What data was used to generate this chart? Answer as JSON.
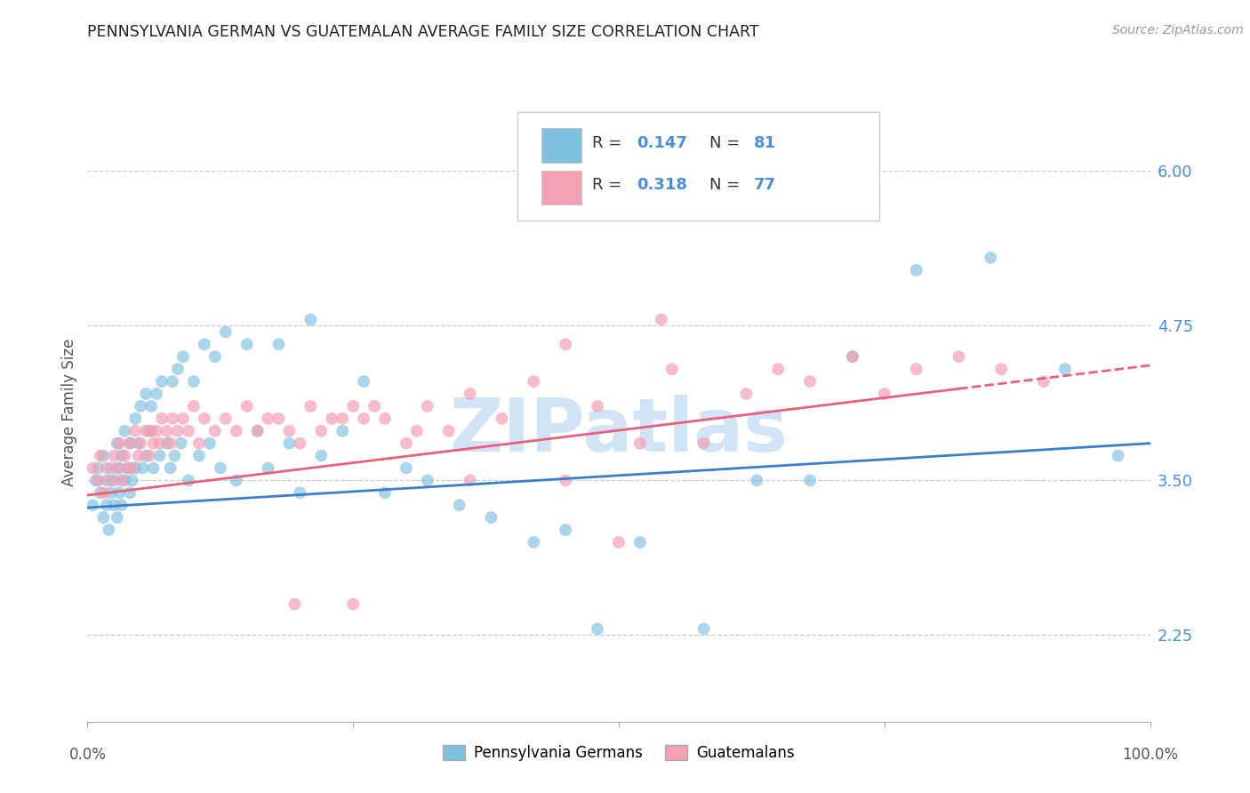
{
  "title": "PENNSYLVANIA GERMAN VS GUATEMALAN AVERAGE FAMILY SIZE CORRELATION CHART",
  "source": "Source: ZipAtlas.com",
  "ylabel": "Average Family Size",
  "r_blue": "0.147",
  "n_blue": "81",
  "r_pink": "0.318",
  "n_pink": "77",
  "legend_blue": "Pennsylvania Germans",
  "legend_pink": "Guatemalans",
  "yticks": [
    2.25,
    3.5,
    4.75,
    6.0
  ],
  "ylim": [
    1.55,
    6.55
  ],
  "xlim": [
    0.0,
    1.0
  ],
  "blue_color": "#7fbfdf",
  "pink_color": "#f4a0b5",
  "line_blue": "#3a80c8",
  "line_pink": "#e8607a",
  "watermark": "ZIPatlas",
  "watermark_color": "#d0e4f5",
  "bg_color": "#ffffff",
  "grid_color": "#cccccc",
  "title_color": "#222222",
  "axis_color": "#555555",
  "right_tick_color": "#4a90d9",
  "blue_line_intercept": 3.28,
  "blue_line_slope": 0.52,
  "pink_line_intercept": 3.38,
  "pink_line_slope": 1.05,
  "blue_points_x": [
    0.005,
    0.008,
    0.01,
    0.012,
    0.015,
    0.015,
    0.018,
    0.018,
    0.02,
    0.022,
    0.022,
    0.025,
    0.025,
    0.028,
    0.028,
    0.03,
    0.03,
    0.032,
    0.032,
    0.035,
    0.035,
    0.038,
    0.04,
    0.04,
    0.042,
    0.045,
    0.045,
    0.048,
    0.05,
    0.052,
    0.055,
    0.055,
    0.058,
    0.06,
    0.062,
    0.065,
    0.068,
    0.07,
    0.075,
    0.078,
    0.08,
    0.082,
    0.085,
    0.088,
    0.09,
    0.095,
    0.1,
    0.105,
    0.11,
    0.115,
    0.12,
    0.125,
    0.13,
    0.14,
    0.15,
    0.16,
    0.17,
    0.18,
    0.19,
    0.2,
    0.21,
    0.22,
    0.24,
    0.26,
    0.28,
    0.3,
    0.32,
    0.35,
    0.38,
    0.42,
    0.45,
    0.48,
    0.52,
    0.58,
    0.63,
    0.68,
    0.72,
    0.78,
    0.85,
    0.92,
    0.97
  ],
  "blue_points_y": [
    3.3,
    3.5,
    3.6,
    3.4,
    3.2,
    3.7,
    3.3,
    3.5,
    3.1,
    3.4,
    3.6,
    3.3,
    3.5,
    3.2,
    3.8,
    3.4,
    3.6,
    3.3,
    3.7,
    3.5,
    3.9,
    3.6,
    3.4,
    3.8,
    3.5,
    4.0,
    3.6,
    3.8,
    4.1,
    3.6,
    4.2,
    3.7,
    3.9,
    4.1,
    3.6,
    4.2,
    3.7,
    4.3,
    3.8,
    3.6,
    4.3,
    3.7,
    4.4,
    3.8,
    4.5,
    3.5,
    4.3,
    3.7,
    4.6,
    3.8,
    4.5,
    3.6,
    4.7,
    3.5,
    4.6,
    3.9,
    3.6,
    4.6,
    3.8,
    3.4,
    4.8,
    3.7,
    3.9,
    4.3,
    3.4,
    3.6,
    3.5,
    3.3,
    3.2,
    3.0,
    3.1,
    2.3,
    3.0,
    2.3,
    3.5,
    3.5,
    4.5,
    5.2,
    5.3,
    4.4,
    3.7
  ],
  "pink_points_x": [
    0.005,
    0.01,
    0.012,
    0.015,
    0.018,
    0.022,
    0.025,
    0.028,
    0.03,
    0.032,
    0.035,
    0.038,
    0.04,
    0.042,
    0.045,
    0.048,
    0.05,
    0.055,
    0.058,
    0.06,
    0.062,
    0.065,
    0.068,
    0.07,
    0.075,
    0.078,
    0.08,
    0.085,
    0.09,
    0.095,
    0.1,
    0.105,
    0.11,
    0.12,
    0.13,
    0.14,
    0.15,
    0.16,
    0.17,
    0.18,
    0.19,
    0.2,
    0.21,
    0.22,
    0.23,
    0.24,
    0.25,
    0.26,
    0.27,
    0.28,
    0.3,
    0.32,
    0.34,
    0.36,
    0.39,
    0.42,
    0.45,
    0.48,
    0.52,
    0.55,
    0.58,
    0.62,
    0.65,
    0.68,
    0.72,
    0.75,
    0.78,
    0.82,
    0.86,
    0.9,
    0.195,
    0.25,
    0.31,
    0.36,
    0.45,
    0.5,
    0.54
  ],
  "pink_points_y": [
    3.6,
    3.5,
    3.7,
    3.4,
    3.6,
    3.5,
    3.7,
    3.6,
    3.8,
    3.5,
    3.7,
    3.6,
    3.8,
    3.6,
    3.9,
    3.7,
    3.8,
    3.9,
    3.7,
    3.9,
    3.8,
    3.9,
    3.8,
    4.0,
    3.9,
    3.8,
    4.0,
    3.9,
    4.0,
    3.9,
    4.1,
    3.8,
    4.0,
    3.9,
    4.0,
    3.9,
    4.1,
    3.9,
    4.0,
    4.0,
    3.9,
    3.8,
    4.1,
    3.9,
    4.0,
    4.0,
    4.1,
    4.0,
    4.1,
    4.0,
    3.8,
    4.1,
    3.9,
    4.2,
    4.0,
    4.3,
    3.5,
    4.1,
    3.8,
    4.4,
    3.8,
    4.2,
    4.4,
    4.3,
    4.5,
    4.2,
    4.4,
    4.5,
    4.4,
    4.3,
    2.5,
    2.5,
    3.9,
    3.5,
    4.6,
    3.0,
    4.8
  ]
}
